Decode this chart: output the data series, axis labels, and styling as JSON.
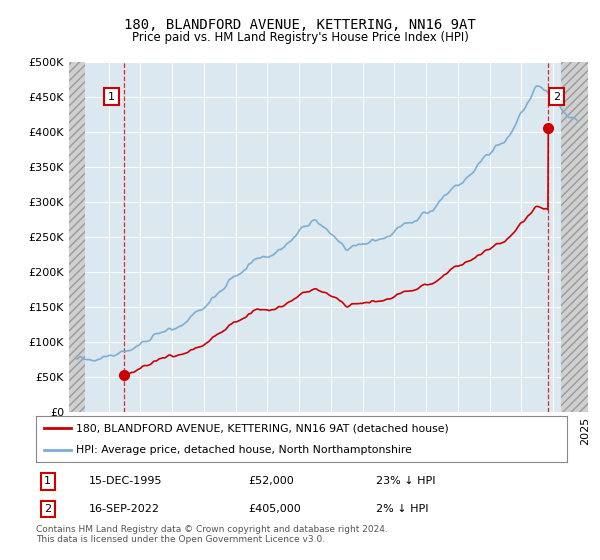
{
  "title": "180, BLANDFORD AVENUE, KETTERING, NN16 9AT",
  "subtitle": "Price paid vs. HM Land Registry's House Price Index (HPI)",
  "property_label": "180, BLANDFORD AVENUE, KETTERING, NN16 9AT (detached house)",
  "hpi_label": "HPI: Average price, detached house, North Northamptonshire",
  "footnote": "Contains HM Land Registry data © Crown copyright and database right 2024.\nThis data is licensed under the Open Government Licence v3.0.",
  "property_color": "#cc0000",
  "hpi_color": "#7bafd4",
  "bg_color": "#dce8f0",
  "hatch_bg": "#d8d8d8",
  "annotation1": {
    "label": "1",
    "date_year": 1995.96,
    "price": 52000,
    "date_str": "15-DEC-1995",
    "note": "23% ↓ HPI"
  },
  "annotation2": {
    "label": "2",
    "date_year": 2022.71,
    "price": 405000,
    "date_str": "16-SEP-2022",
    "note": "2% ↓ HPI"
  },
  "xlim": [
    1992.5,
    2025.2
  ],
  "ylim": [
    0,
    500000
  ],
  "yticks": [
    0,
    50000,
    100000,
    150000,
    200000,
    250000,
    300000,
    350000,
    400000,
    450000,
    500000
  ],
  "hatch_left_end": 1993.5,
  "hatch_right_start": 2023.5,
  "xticks_start": 1993,
  "xticks_end": 2025,
  "xticks_step": 2
}
